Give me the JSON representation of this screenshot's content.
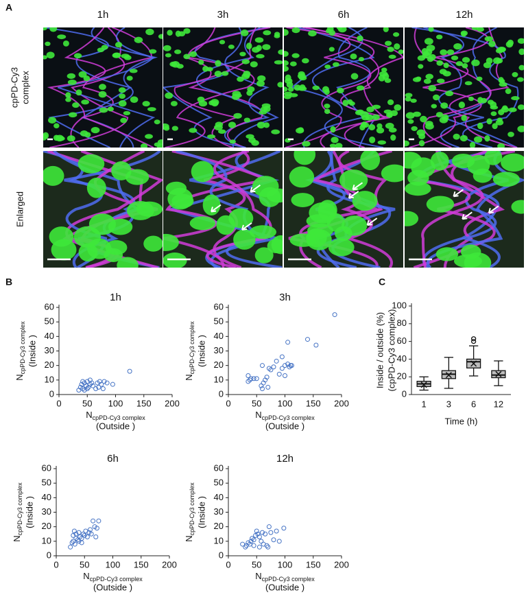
{
  "panel_labels": [
    "A",
    "B",
    "C"
  ],
  "image_panels": {
    "columns": [
      "1h",
      "3h",
      "6h",
      "12h"
    ],
    "rows": [
      [
        "cpPD-Cy3",
        "complex"
      ],
      [
        "Enlarged"
      ]
    ]
  },
  "chart_data": [
    {
      "type": "scatter",
      "title": "1h",
      "color": "#4472c4",
      "x": [
        35,
        38,
        40,
        42,
        45,
        48,
        50,
        52,
        55,
        55,
        58,
        60,
        45,
        68,
        70,
        72,
        75,
        80,
        85,
        95,
        125,
        42,
        50,
        65,
        78
      ],
      "y": [
        3,
        5,
        7,
        4,
        8,
        6,
        9,
        5,
        7,
        10,
        8,
        6,
        3,
        8,
        5,
        9,
        7,
        9,
        8,
        7,
        16,
        9,
        4,
        4,
        4
      ],
      "xlim": [
        0,
        200
      ],
      "xticks": [
        0,
        50,
        100,
        150,
        200
      ],
      "ylim": [
        0,
        60
      ],
      "yticks": [
        0,
        10,
        20,
        30,
        40,
        50,
        60
      ],
      "xlabel": {
        "symbol": "N",
        "subscript": "cpPD-Cy3 complex",
        "note": "(Outside )"
      },
      "ylabel": {
        "symbol": "N",
        "subscript": "cpPD-Cy3 complex",
        "note": "(Inside )"
      }
    },
    {
      "type": "scatter",
      "title": "3h",
      "color": "#4472c4",
      "x": [
        35,
        38,
        40,
        45,
        50,
        35,
        58,
        60,
        62,
        65,
        68,
        72,
        75,
        80,
        85,
        90,
        95,
        100,
        105,
        105,
        110,
        112,
        140,
        155,
        188,
        60,
        70,
        100,
        95,
        108
      ],
      "y": [
        13,
        10,
        11,
        11,
        11,
        9,
        6,
        4,
        8,
        10,
        12,
        18,
        17,
        19,
        23,
        14,
        18,
        20,
        21,
        36,
        20,
        20,
        38,
        34,
        55,
        20,
        5,
        13,
        26,
        19
      ],
      "xlim": [
        0,
        200
      ],
      "xticks": [
        0,
        50,
        100,
        150,
        200
      ],
      "ylim": [
        0,
        60
      ],
      "yticks": [
        0,
        10,
        20,
        30,
        40,
        50,
        60
      ],
      "xlabel": {
        "symbol": "N",
        "subscript": "cpPD-Cy3 complex",
        "note": "(Outside )"
      },
      "ylabel": {
        "symbol": "N",
        "subscript": "cpPD-Cy3 complex",
        "note": "(Inside )"
      }
    },
    {
      "type": "scatter",
      "title": "6h",
      "color": "#4472c4",
      "x": [
        25,
        28,
        30,
        30,
        32,
        35,
        35,
        38,
        40,
        42,
        45,
        45,
        48,
        50,
        52,
        55,
        58,
        60,
        62,
        65,
        68,
        70,
        72,
        75,
        40,
        33
      ],
      "y": [
        6,
        9,
        10,
        14,
        17,
        12,
        15,
        11,
        16,
        13,
        12,
        9,
        15,
        14,
        17,
        13,
        16,
        18,
        15,
        24,
        20,
        13,
        19,
        24,
        10,
        8
      ],
      "xlim": [
        0,
        200
      ],
      "xticks": [
        0,
        50,
        100,
        150,
        200
      ],
      "ylim": [
        0,
        60
      ],
      "yticks": [
        0,
        10,
        20,
        30,
        40,
        50,
        60
      ],
      "xlabel": {
        "symbol": "N",
        "subscript": "cpPD-Cy3 complex",
        "note": "(Outside )"
      },
      "ylabel": {
        "symbol": "N",
        "subscript": "cpPD-Cy3 complex",
        "note": "(Inside )"
      }
    },
    {
      "type": "scatter",
      "title": "12h",
      "color": "#4472c4",
      "x": [
        25,
        30,
        32,
        35,
        38,
        40,
        42,
        45,
        48,
        50,
        52,
        55,
        58,
        60,
        62,
        65,
        68,
        70,
        72,
        75,
        80,
        85,
        90,
        98,
        55,
        45
      ],
      "y": [
        8,
        6,
        7,
        9,
        8,
        10,
        12,
        7,
        14,
        17,
        15,
        13,
        10,
        16,
        8,
        15,
        7,
        6,
        20,
        16,
        11,
        17,
        10,
        19,
        6,
        11
      ],
      "xlim": [
        0,
        200
      ],
      "xticks": [
        0,
        50,
        100,
        150,
        200
      ],
      "ylim": [
        0,
        60
      ],
      "yticks": [
        0,
        10,
        20,
        30,
        40,
        50,
        60
      ],
      "xlabel": {
        "symbol": "N",
        "subscript": "cpPD-Cy3 complex",
        "note": "(Outside )"
      },
      "ylabel": {
        "symbol": "N",
        "subscript": "cpPD-Cy3 complex",
        "note": "(Inside )"
      }
    },
    {
      "type": "box",
      "color": "#bdbdbd",
      "categories": [
        "1",
        "3",
        "6",
        "12"
      ],
      "boxes": [
        {
          "min": 5,
          "q1": 9,
          "median": 12,
          "q3": 15,
          "max": 20,
          "mean": 11,
          "outliers": []
        },
        {
          "min": 7,
          "q1": 18,
          "median": 23,
          "q3": 27,
          "max": 42,
          "mean": 22,
          "outliers": []
        },
        {
          "min": 21,
          "q1": 30,
          "median": 37,
          "q3": 40,
          "max": 55,
          "mean": 35,
          "outliers": [
            60,
            63
          ]
        },
        {
          "min": 10,
          "q1": 19,
          "median": 22,
          "q3": 27,
          "max": 38,
          "mean": 23,
          "outliers": []
        }
      ],
      "ylim": [
        0,
        100
      ],
      "yticks": [
        0,
        20,
        40,
        60,
        80,
        100
      ],
      "xlabel": "Time (h)",
      "ylabel": [
        "Inside / outside (%)",
        "(cpPD-Cy3 complex)"
      ]
    }
  ]
}
